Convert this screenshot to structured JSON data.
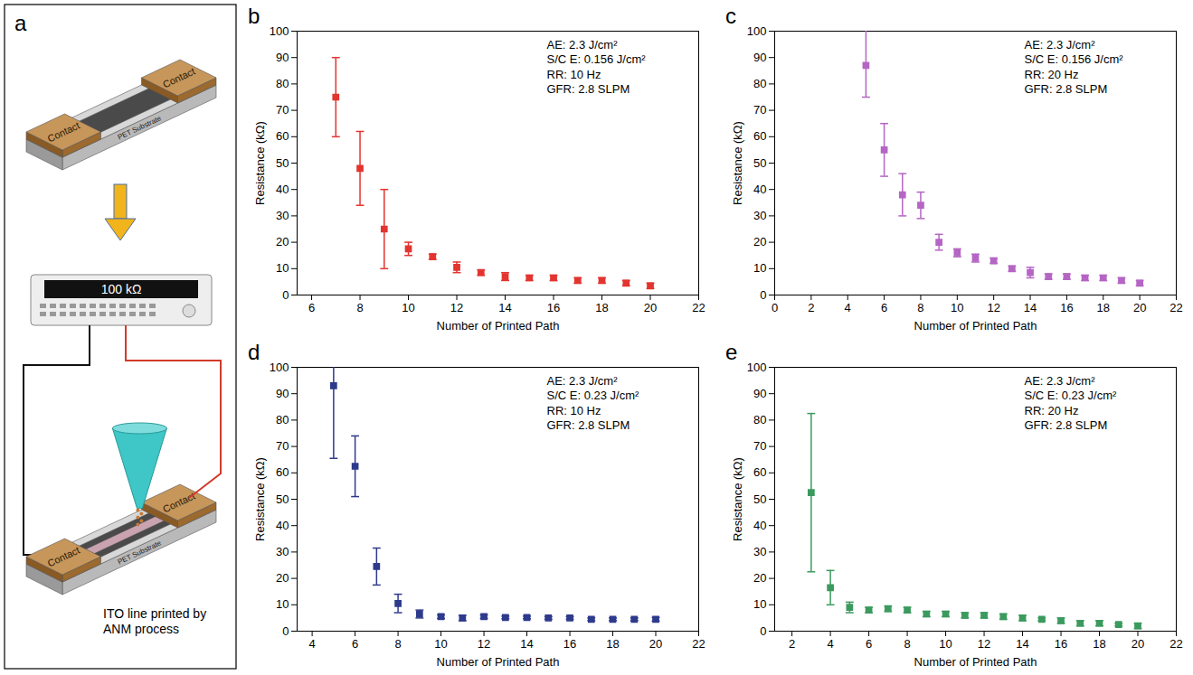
{
  "diagram": {
    "panel": "a",
    "top_device": {
      "contacts": [
        "Contact",
        "Contact"
      ],
      "substrate": "PET Substrate"
    },
    "meter_display": "100 kΩ",
    "bottom_device": {
      "contacts": [
        "Contact",
        "Contact"
      ],
      "substrate": "PET Substrate"
    },
    "caption": "ITO line printed by ANM process"
  },
  "chart_data": [
    {
      "panel": "b",
      "type": "scatter",
      "marker": "square",
      "color": "#e3342f",
      "xlabel": "Number of Printed Path",
      "ylabel": "Resistance (kΩ)",
      "annotations": [
        "AE: 2.3 J/cm²",
        "S/C E: 0.156 J/cm²",
        "RR: 10 Hz",
        "GFR: 2.8 SLPM"
      ],
      "x": [
        7,
        8,
        9,
        10,
        11,
        12,
        13,
        14,
        15,
        16,
        17,
        18,
        19,
        20
      ],
      "values": [
        75,
        48,
        25,
        17.5,
        14.5,
        10.5,
        8.5,
        7,
        6.5,
        6.5,
        5.5,
        5.5,
        4.5,
        3.5
      ],
      "error_low": [
        60,
        34,
        10,
        15,
        13.5,
        8.5,
        7.5,
        5.5,
        5.5,
        5.5,
        4.5,
        4.5,
        3.5,
        2.5
      ],
      "error_high": [
        90,
        62,
        40,
        20,
        15.5,
        12.5,
        9.5,
        8.5,
        7.5,
        7.5,
        6.5,
        6.5,
        5.5,
        4.5
      ],
      "xlim": [
        5.4,
        22
      ],
      "xticks": [
        6,
        8,
        10,
        12,
        14,
        16,
        18,
        20,
        22
      ],
      "ylim": [
        0,
        100
      ],
      "yticks": [
        0,
        10,
        20,
        30,
        40,
        50,
        60,
        70,
        80,
        90,
        100
      ],
      "grid": false
    },
    {
      "panel": "c",
      "type": "scatter",
      "marker": "square",
      "color": "#b565c4",
      "xlabel": "Number of Printed Path",
      "ylabel": "Resistance (kΩ)",
      "annotations": [
        "AE: 2.3 J/cm²",
        "S/C E: 0.156 J/cm²",
        "RR: 20 Hz",
        "GFR: 2.8 SLPM"
      ],
      "x": [
        5,
        6,
        7,
        8,
        9,
        10,
        11,
        12,
        13,
        14,
        15,
        16,
        17,
        18,
        19,
        20
      ],
      "values": [
        87,
        55,
        38,
        34,
        20,
        16,
        14,
        13,
        10,
        8.5,
        7,
        7,
        6.5,
        6.5,
        5.5,
        4.5
      ],
      "error_low": [
        75,
        45,
        30,
        29,
        17,
        14.5,
        12.5,
        12,
        9,
        6.5,
        6,
        6,
        5.5,
        5.5,
        4.5,
        3.5
      ],
      "error_high": [
        102,
        65,
        46,
        39,
        23,
        17.5,
        15.5,
        14,
        11,
        10.5,
        8,
        8,
        7.5,
        7.5,
        6.5,
        5.5
      ],
      "xlim": [
        0,
        22
      ],
      "xticks": [
        0,
        2,
        4,
        6,
        8,
        10,
        12,
        14,
        16,
        18,
        20,
        22
      ],
      "ylim": [
        0,
        100
      ],
      "yticks": [
        0,
        10,
        20,
        30,
        40,
        50,
        60,
        70,
        80,
        90,
        100
      ],
      "grid": false
    },
    {
      "panel": "d",
      "type": "scatter",
      "marker": "square",
      "color": "#2e3a8c",
      "xlabel": "Number of Printed Path",
      "ylabel": "Resistance (kΩ)",
      "annotations": [
        "AE: 2.3 J/cm²",
        "S/C E: 0.23 J/cm²",
        "RR: 10 Hz",
        "GFR: 2.8 SLPM"
      ],
      "x": [
        5,
        6,
        7,
        8,
        9,
        10,
        11,
        12,
        13,
        14,
        15,
        16,
        17,
        18,
        19,
        20
      ],
      "values": [
        93,
        62.5,
        24.5,
        10.5,
        6.5,
        5.5,
        5,
        5.5,
        5.2,
        5.2,
        5,
        5,
        4.5,
        4.5,
        4.5,
        4.5
      ],
      "error_low": [
        65.5,
        51,
        17.5,
        7,
        5,
        4.8,
        4,
        4.8,
        4.7,
        4.7,
        4.5,
        4.5,
        4,
        4,
        4,
        3.8
      ],
      "error_high": [
        102,
        74,
        31.5,
        14,
        8,
        6.2,
        6,
        6.2,
        5.7,
        5.7,
        5.5,
        5.5,
        5,
        5,
        5,
        5.2
      ],
      "xlim": [
        3.3,
        22
      ],
      "xticks": [
        4,
        6,
        8,
        10,
        12,
        14,
        16,
        18,
        20,
        22
      ],
      "ylim": [
        0,
        100
      ],
      "yticks": [
        0,
        10,
        20,
        30,
        40,
        50,
        60,
        70,
        80,
        90,
        100
      ],
      "grid": false
    },
    {
      "panel": "e",
      "type": "scatter",
      "marker": "square",
      "color": "#3b9a5e",
      "xlabel": "Number of Printed Path",
      "ylabel": "Resistance (kΩ)",
      "annotations": [
        "AE: 2.3 J/cm²",
        "S/C E: 0.23 J/cm²",
        "RR: 20 Hz",
        "GFR: 2.8 SLPM"
      ],
      "x": [
        3,
        4,
        5,
        6,
        7,
        8,
        9,
        10,
        11,
        12,
        13,
        14,
        15,
        16,
        17,
        18,
        19,
        20
      ],
      "values": [
        52.5,
        16.5,
        9,
        8,
        8.5,
        8,
        6.5,
        6.5,
        6,
        6,
        5.5,
        5,
        4.5,
        4,
        3,
        3,
        2.5,
        2
      ],
      "error_low": [
        22.5,
        10,
        7,
        7,
        7.5,
        7,
        5.5,
        5.5,
        5,
        5,
        4.5,
        4,
        4,
        3,
        2,
        2,
        2,
        1
      ],
      "error_high": [
        82.5,
        23,
        11,
        9,
        9.5,
        9,
        7.5,
        7.5,
        7,
        7,
        6.5,
        6,
        5,
        5,
        4,
        4,
        3,
        3
      ],
      "xlim": [
        1.1,
        22
      ],
      "xticks": [
        2,
        4,
        6,
        8,
        10,
        12,
        14,
        16,
        18,
        20,
        22
      ],
      "ylim": [
        0,
        100
      ],
      "yticks": [
        0,
        10,
        20,
        30,
        40,
        50,
        60,
        70,
        80,
        90,
        100
      ],
      "grid": false
    }
  ]
}
